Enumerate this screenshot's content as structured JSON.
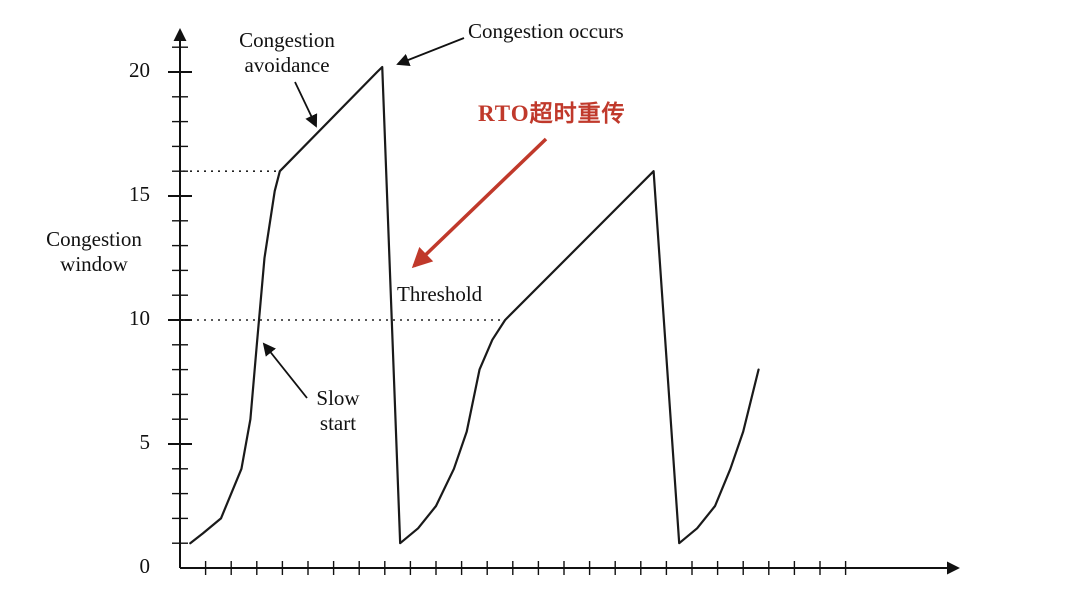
{
  "page": {
    "background": "#ffffff"
  },
  "colors": {
    "curve": "#1a1a1a",
    "axis": "#111111",
    "rto_red": "#c0392b"
  },
  "annotations": {
    "congestion_avoidance": {
      "line1": "Congestion",
      "line2": "avoidance"
    },
    "congestion_occurs": {
      "text": "Congestion occurs"
    },
    "rto_retransmit": {
      "text": "RTO超时重传",
      "color": "#c0392b"
    },
    "threshold": {
      "text": "Threshold"
    },
    "slow_start": {
      "line1": "Slow",
      "line2": "start"
    },
    "y_axis_label": {
      "line1": "Congestion",
      "line2": "window"
    }
  },
  "chart_data": {
    "type": "line",
    "title": "",
    "xlabel": "",
    "ylabel": "Congestion window",
    "ylim": [
      0,
      22
    ],
    "xlim": [
      0,
      30
    ],
    "grid": false,
    "legend": "none",
    "y_major_ticks": [
      0,
      5,
      10,
      15,
      20
    ],
    "y_minor_tick_step": 1,
    "y_minor_tick_max": 21,
    "x_minor_tick_count": 26,
    "series": [
      {
        "name": "congestion-window",
        "color": "#1a1a1a",
        "points": [
          [
            0.4,
            1
          ],
          [
            0.9,
            1.4
          ],
          [
            1.6,
            2
          ],
          [
            2.4,
            4
          ],
          [
            2.75,
            6
          ],
          [
            3.0,
            9
          ],
          [
            3.3,
            12.5
          ],
          [
            3.7,
            15.2
          ],
          [
            3.9,
            16
          ],
          [
            7.7,
            20
          ],
          [
            7.9,
            20.2
          ],
          [
            8.6,
            1
          ],
          [
            9.3,
            1.6
          ],
          [
            10.0,
            2.5
          ],
          [
            10.7,
            4
          ],
          [
            11.2,
            5.5
          ],
          [
            11.7,
            8
          ],
          [
            12.2,
            9.2
          ],
          [
            12.7,
            10
          ],
          [
            18.5,
            16
          ],
          [
            19.5,
            1
          ],
          [
            20.2,
            1.6
          ],
          [
            20.9,
            2.5
          ],
          [
            21.5,
            4
          ],
          [
            22.0,
            5.5
          ],
          [
            22.6,
            8
          ]
        ]
      }
    ],
    "threshold_lines": [
      {
        "y": 16,
        "x_start": 0,
        "x_end": 3.9,
        "style": "dotted"
      },
      {
        "y": 10,
        "x_start": 0,
        "x_end": 12.7,
        "style": "dotted"
      }
    ]
  }
}
